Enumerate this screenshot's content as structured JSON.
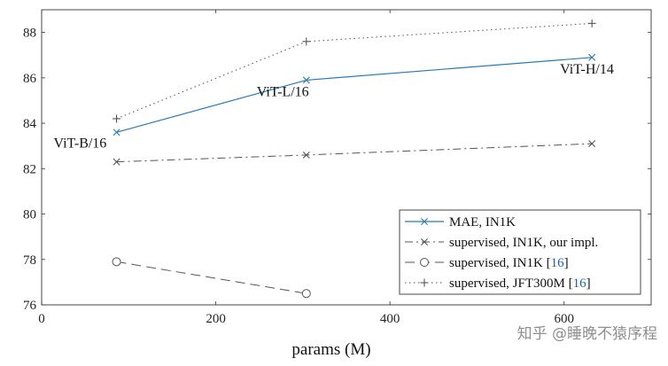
{
  "chart_data": {
    "type": "line",
    "xlabel": "params (M)",
    "ylabel": "",
    "xlim": [
      0,
      700
    ],
    "ylim": [
      76,
      89
    ],
    "x_ticks": [
      0,
      200,
      400,
      600
    ],
    "y_ticks": [
      76,
      78,
      80,
      82,
      84,
      86,
      88
    ],
    "grid": false,
    "legend_position": "bottom-right",
    "series": [
      {
        "name": "MAE, IN1K",
        "citation": "",
        "color": "#2a7ab8",
        "line_style": "solid",
        "marker": "x",
        "x": [
          86,
          304,
          632
        ],
        "y": [
          83.6,
          85.9,
          86.9
        ]
      },
      {
        "name": "supervised, IN1K, our impl.",
        "citation": "",
        "color": "#555555",
        "line_style": "dashdot",
        "marker": "x",
        "x": [
          86,
          304,
          632
        ],
        "y": [
          82.3,
          82.6,
          83.1
        ]
      },
      {
        "name": "supervised, IN1K",
        "citation": "16",
        "color": "#555555",
        "line_style": "dashed",
        "marker": "circle",
        "x": [
          86,
          304
        ],
        "y": [
          77.9,
          76.5
        ]
      },
      {
        "name": "supervised, JFT300M",
        "citation": "16",
        "color": "#555555",
        "line_style": "dotted",
        "marker": "plus",
        "x": [
          86,
          304,
          632
        ],
        "y": [
          84.2,
          87.6,
          88.4
        ]
      }
    ],
    "annotations": [
      "ViT-B/16",
      "ViT-L/16",
      "ViT-H/14"
    ]
  },
  "watermark": "知乎 @睡晚不猿序程"
}
